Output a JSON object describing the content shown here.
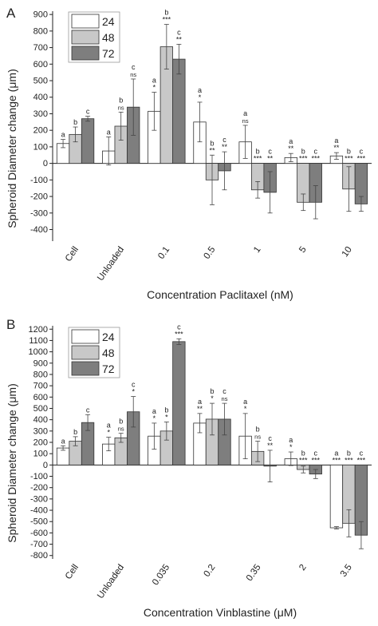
{
  "chart_data": [
    {
      "panel_label": "A",
      "type": "bar",
      "xlabel": "Concentration Paclitaxel (nM)",
      "ylabel": "Spheroid Diameter change (μm)",
      "ylim": [
        -470,
        920
      ],
      "yticks": [
        -400,
        -300,
        -200,
        -100,
        0,
        100,
        200,
        300,
        400,
        500,
        600,
        700,
        800,
        900
      ],
      "categories": [
        "Cell",
        "Unloaded",
        "0.1",
        "0.5",
        "1",
        "5",
        "10"
      ],
      "legend": "top-left",
      "series": [
        {
          "name": "24",
          "color": "#ffffff",
          "values": [
            120,
            75,
            315,
            250,
            130,
            35,
            45
          ],
          "errors": [
            25,
            85,
            115,
            120,
            100,
            25,
            20
          ],
          "letters": [
            "a",
            "a",
            "a",
            "a",
            "a",
            "a",
            "a"
          ],
          "sig": [
            "",
            "",
            "*",
            "*",
            "ns",
            "**",
            "**"
          ]
        },
        {
          "name": "48",
          "color": "#c8c8c8",
          "values": [
            175,
            225,
            705,
            -100,
            -160,
            -235,
            -155
          ],
          "errors": [
            45,
            85,
            135,
            150,
            50,
            50,
            135
          ],
          "letters": [
            "b",
            "b",
            "b",
            "b",
            "b",
            "b",
            "b"
          ],
          "sig": [
            "",
            "ns",
            "***",
            "**",
            "***",
            "***",
            "***"
          ]
        },
        {
          "name": "72",
          "color": "#7e7e7e",
          "values": [
            270,
            340,
            630,
            -45,
            -175,
            -235,
            -245
          ],
          "errors": [
            15,
            170,
            90,
            115,
            125,
            100,
            45
          ],
          "letters": [
            "c",
            "c",
            "c",
            "c",
            "c",
            "c",
            "c"
          ],
          "sig": [
            "",
            "ns",
            "**",
            "**",
            "**",
            "***",
            "***"
          ]
        }
      ]
    },
    {
      "panel_label": "B",
      "type": "bar",
      "xlabel": "Concentration Vinblastine (μM)",
      "ylabel": "Spheroid Diameter change (μm)",
      "ylim": [
        -830,
        1230
      ],
      "yticks": [
        -800,
        -700,
        -600,
        -500,
        -400,
        -300,
        -200,
        -100,
        0,
        100,
        200,
        300,
        400,
        500,
        600,
        700,
        800,
        900,
        1000,
        1100,
        1200
      ],
      "categories": [
        "Cell",
        "Unloaded",
        "0.035",
        "0.2",
        "0.35",
        "2",
        "3.5"
      ],
      "legend": "top-left",
      "series": [
        {
          "name": "24",
          "color": "#ffffff",
          "values": [
            150,
            185,
            255,
            370,
            255,
            55,
            -555
          ],
          "errors": [
            20,
            60,
            115,
            85,
            200,
            60,
            10
          ],
          "letters": [
            "a",
            "a",
            "a",
            "a",
            "a",
            "a",
            "a"
          ],
          "sig": [
            "",
            "*",
            "*",
            "**",
            "*",
            "*",
            "***"
          ]
        },
        {
          "name": "48",
          "color": "#c8c8c8",
          "values": [
            210,
            240,
            300,
            405,
            120,
            -40,
            -515
          ],
          "errors": [
            40,
            40,
            80,
            140,
            90,
            30,
            120
          ],
          "letters": [
            "b",
            "b",
            "b",
            "b",
            "b",
            "b",
            "b"
          ],
          "sig": [
            "",
            "ns",
            "*",
            "*",
            "ns",
            "***",
            "***"
          ]
        },
        {
          "name": "72",
          "color": "#7e7e7e",
          "values": [
            375,
            470,
            1090,
            405,
            -10,
            -80,
            -620
          ],
          "errors": [
            70,
            135,
            25,
            140,
            140,
            40,
            120
          ],
          "letters": [
            "c",
            "c",
            "c",
            "c",
            "c",
            "c",
            "c"
          ],
          "sig": [
            "",
            "*",
            "***",
            "ns",
            "**",
            "***",
            "***"
          ]
        }
      ]
    }
  ]
}
